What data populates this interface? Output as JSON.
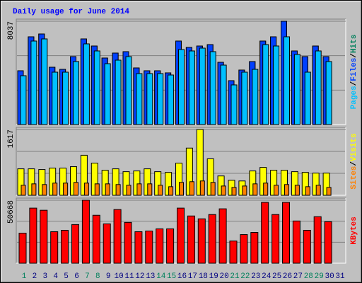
{
  "chart_data": [
    {
      "type": "bar",
      "title": "Daily usage for June 2014",
      "ylim": [
        0,
        8037
      ],
      "yticks": [
        8037
      ],
      "separator": "/",
      "series": [
        {
          "name": "Hits",
          "color": "#00805c",
          "values": [
            4184,
            6826,
            7046,
            4459,
            4294,
            5285,
            6661,
            6110,
            5175,
            5560,
            5670,
            4404,
            4184,
            4184,
            4019,
            6496,
            6000,
            6110,
            6220,
            4844,
            3413,
            4239,
            4899,
            6496,
            6826,
            8037,
            5725,
            5285,
            6110,
            5285,
            null
          ]
        },
        {
          "name": "Files",
          "color": "#0040ff",
          "values": [
            4184,
            6826,
            7046,
            4459,
            4294,
            5285,
            6661,
            6110,
            5175,
            5560,
            5670,
            4404,
            4184,
            4184,
            4019,
            6496,
            6000,
            6110,
            6220,
            4844,
            3413,
            4239,
            4899,
            6496,
            6826,
            8037,
            5725,
            5285,
            6110,
            5285,
            null
          ]
        },
        {
          "name": "Pages",
          "color": "#00c0ff",
          "values": [
            3798,
            6496,
            6661,
            4074,
            4074,
            4899,
            6276,
            5725,
            4734,
            5009,
            5285,
            3963,
            3963,
            3963,
            3853,
            5835,
            5725,
            5945,
            5670,
            4624,
            3083,
            4074,
            4294,
            6220,
            6110,
            6826,
            5450,
            4074,
            5725,
            4899,
            null
          ]
        }
      ]
    },
    {
      "type": "bar",
      "ylim": [
        0,
        1617
      ],
      "yticks": [
        1617
      ],
      "separator": "/",
      "series": [
        {
          "name": "Visits",
          "color": "#ffff00",
          "values": [
            650,
            650,
            633,
            668,
            668,
            703,
            984,
            791,
            615,
            650,
            580,
            598,
            650,
            580,
            562,
            791,
            1160,
            1617,
            896,
            475,
            369,
            352,
            598,
            685,
            615,
            615,
            580,
            562,
            545,
            545,
            null
          ]
        },
        {
          "name": "Sites",
          "color": "#ff8000",
          "values": [
            246,
            281,
            264,
            299,
            299,
            316,
            299,
            281,
            281,
            264,
            246,
            281,
            281,
            246,
            211,
            316,
            334,
            352,
            316,
            228,
            193,
            228,
            281,
            299,
            246,
            264,
            246,
            211,
            246,
            193,
            null
          ]
        }
      ]
    },
    {
      "type": "bar",
      "ylim": [
        0,
        50668
      ],
      "yticks": [
        50668
      ],
      "categories": [
        "1",
        "2",
        "3",
        "4",
        "5",
        "6",
        "7",
        "8",
        "9",
        "10",
        "11",
        "12",
        "13",
        "14",
        "15",
        "16",
        "17",
        "18",
        "19",
        "20",
        "21",
        "22",
        "23",
        "24",
        "25",
        "26",
        "27",
        "28",
        "29",
        "30",
        "31"
      ],
      "tick_label_colors": [
        "#00805c",
        "#000080",
        "#000080",
        "#000080",
        "#000080",
        "#000080",
        "#00805c",
        "#00805c",
        "#000080",
        "#000080",
        "#000080",
        "#000080",
        "#000080",
        "#00805c",
        "#00805c",
        "#000080",
        "#000080",
        "#000080",
        "#000080",
        "#000080",
        "#00805c",
        "#00805c",
        "#000080",
        "#000080",
        "#000080",
        "#000080",
        "#000080",
        "#00805c",
        "#00805c",
        "#000080",
        "#000080"
      ],
      "series": [
        {
          "name": "KBytes",
          "color": "#ff0000",
          "values": [
            24182,
            44335,
            42607,
            25333,
            26485,
            31091,
            50668,
            38577,
            31667,
            43183,
            32819,
            25333,
            25909,
            27637,
            27637,
            44335,
            38001,
            35698,
            39152,
            43759,
            17849,
            23030,
            24758,
            48941,
            39152,
            48941,
            33970,
            26485,
            37425,
            33394,
            null
          ]
        }
      ]
    }
  ]
}
